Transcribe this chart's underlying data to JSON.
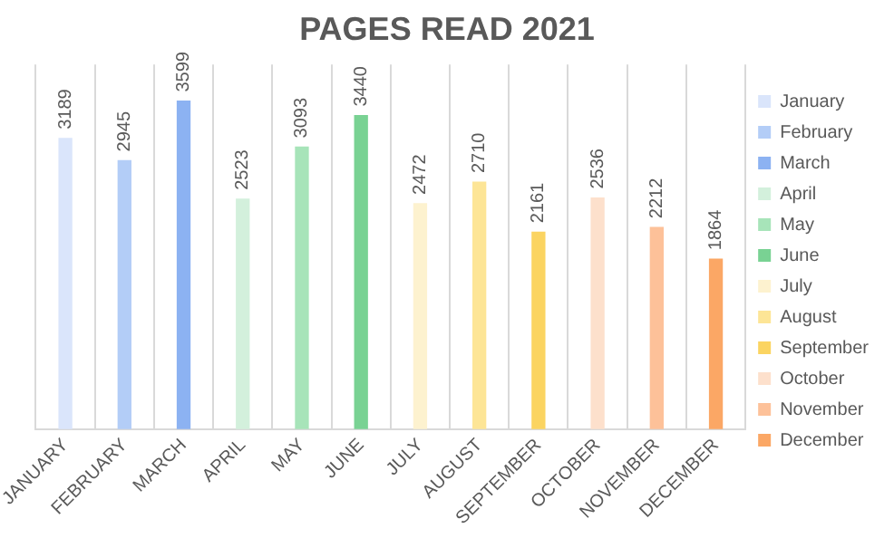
{
  "chart_data": {
    "type": "bar",
    "title": "PAGES READ 2021",
    "categories": [
      "JANUARY",
      "FEBRUARY",
      "MARCH",
      "APRIL",
      "MAY",
      "JUNE",
      "JULY",
      "AUGUST",
      "SEPTEMBER",
      "OCTOBER",
      "NOVEMBER",
      "DECEMBER"
    ],
    "series": [
      {
        "name": "January",
        "color": "#dae5fb",
        "values": [
          3189,
          null,
          null,
          null,
          null,
          null,
          null,
          null,
          null,
          null,
          null,
          null
        ]
      },
      {
        "name": "February",
        "color": "#b3cdf7",
        "values": [
          null,
          2945,
          null,
          null,
          null,
          null,
          null,
          null,
          null,
          null,
          null,
          null
        ]
      },
      {
        "name": "March",
        "color": "#8cb2f2",
        "values": [
          null,
          null,
          3599,
          null,
          null,
          null,
          null,
          null,
          null,
          null,
          null,
          null
        ]
      },
      {
        "name": "April",
        "color": "#d3f0dc",
        "values": [
          null,
          null,
          null,
          2523,
          null,
          null,
          null,
          null,
          null,
          null,
          null,
          null
        ]
      },
      {
        "name": "May",
        "color": "#a7e4b9",
        "values": [
          null,
          null,
          null,
          null,
          3093,
          null,
          null,
          null,
          null,
          null,
          null,
          null
        ]
      },
      {
        "name": "June",
        "color": "#79d293",
        "values": [
          null,
          null,
          null,
          null,
          null,
          3440,
          null,
          null,
          null,
          null,
          null,
          null
        ]
      },
      {
        "name": "July",
        "color": "#fdf2cf",
        "values": [
          null,
          null,
          null,
          null,
          null,
          null,
          2472,
          null,
          null,
          null,
          null,
          null
        ]
      },
      {
        "name": "August",
        "color": "#fde596",
        "values": [
          null,
          null,
          null,
          null,
          null,
          null,
          null,
          2710,
          null,
          null,
          null,
          null
        ]
      },
      {
        "name": "September",
        "color": "#fbd461",
        "values": [
          null,
          null,
          null,
          null,
          null,
          null,
          null,
          null,
          2161,
          null,
          null,
          null
        ]
      },
      {
        "name": "October",
        "color": "#fde0cc",
        "values": [
          null,
          null,
          null,
          null,
          null,
          null,
          null,
          null,
          null,
          2536,
          null,
          null
        ]
      },
      {
        "name": "November",
        "color": "#fdc199",
        "values": [
          null,
          null,
          null,
          null,
          null,
          null,
          null,
          null,
          null,
          null,
          2212,
          null
        ]
      },
      {
        "name": "December",
        "color": "#fba765",
        "values": [
          null,
          null,
          null,
          null,
          null,
          null,
          null,
          null,
          null,
          null,
          null,
          1864
        ]
      }
    ],
    "data_labels": true,
    "grid": "x",
    "legend": "right"
  }
}
